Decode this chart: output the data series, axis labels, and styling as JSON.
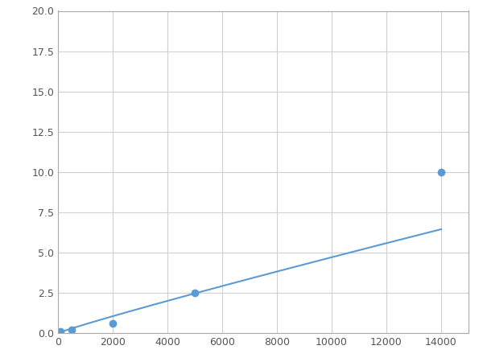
{
  "x": [
    100,
    500,
    2000,
    5000,
    14000
  ],
  "y": [
    0.1,
    0.2,
    0.6,
    2.5,
    10.0
  ],
  "line_color": "#5b9bd5",
  "marker_color": "#5b9bd5",
  "marker_size": 6,
  "line_width": 1.5,
  "xlim": [
    0,
    15000
  ],
  "ylim": [
    0,
    20.0
  ],
  "yticks": [
    0.0,
    2.5,
    5.0,
    7.5,
    10.0,
    12.5,
    15.0,
    17.5,
    20.0
  ],
  "xticks": [
    0,
    2000,
    4000,
    6000,
    8000,
    10000,
    12000,
    14000
  ],
  "grid_color": "#d0d0d0",
  "background_color": "#ffffff",
  "spine_color": "#aaaaaa",
  "tick_label_color": "#555555",
  "tick_label_size": 9
}
